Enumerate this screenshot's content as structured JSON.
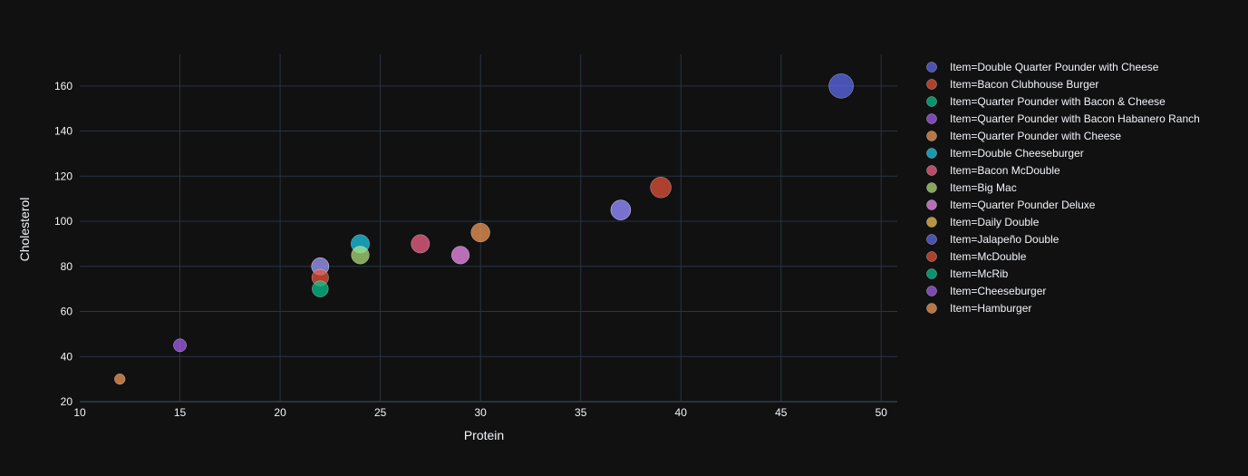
{
  "chart_data": {
    "type": "scatter",
    "xlabel": "Protein",
    "ylabel": "Cholesterol",
    "xlim": [
      10,
      50.8
    ],
    "ylim": [
      20,
      174
    ],
    "xticks": [
      10,
      15,
      20,
      25,
      30,
      35,
      40,
      45,
      50
    ],
    "yticks": [
      20,
      40,
      60,
      80,
      100,
      120,
      140,
      160
    ],
    "grid": true,
    "legend_position": "right",
    "bubble_size_encodes": "Cholesterol",
    "series": [
      {
        "name": "Item=Double Quarter Pounder with Cheese",
        "color": "#636efa",
        "x": 48,
        "y": 160
      },
      {
        "name": "Item=Bacon Clubhouse Burger",
        "color": "#ef553b",
        "x": 39,
        "y": 115
      },
      {
        "name": "Item=Quarter Pounder with Bacon & Cheese",
        "color": "#00cc96",
        "x": 37,
        "y": 105
      },
      {
        "name": "Item=Quarter Pounder with Bacon Habanero Ranch",
        "color": "#ab63fa",
        "x": 37,
        "y": 105
      },
      {
        "name": "Item=Quarter Pounder with Cheese",
        "color": "#ffa15a",
        "x": 30,
        "y": 95
      },
      {
        "name": "Item=Double Cheeseburger",
        "color": "#19d3f3",
        "x": 24,
        "y": 90
      },
      {
        "name": "Item=Bacon McDouble",
        "color": "#ff6692",
        "x": 27,
        "y": 90
      },
      {
        "name": "Item=Big Mac",
        "color": "#b6e880",
        "x": 24,
        "y": 85
      },
      {
        "name": "Item=Quarter Pounder Deluxe",
        "color": "#ff97ff",
        "x": 29,
        "y": 85
      },
      {
        "name": "Item=Daily Double",
        "color": "#fecb52",
        "x": 22,
        "y": 80
      },
      {
        "name": "Item=Jalapeño Double",
        "color": "#636efa",
        "x": 22,
        "y": 80
      },
      {
        "name": "Item=McDouble",
        "color": "#ef553b",
        "x": 22,
        "y": 75
      },
      {
        "name": "Item=McRib",
        "color": "#00cc96",
        "x": 22,
        "y": 70
      },
      {
        "name": "Item=Cheeseburger",
        "color": "#ab63fa",
        "x": 15,
        "y": 45
      },
      {
        "name": "Item=Hamburger",
        "color": "#ffa15a",
        "x": 12,
        "y": 30
      }
    ]
  },
  "colors": {
    "background": "#111111",
    "grid": "#283442",
    "text": "#f2f5fa"
  }
}
